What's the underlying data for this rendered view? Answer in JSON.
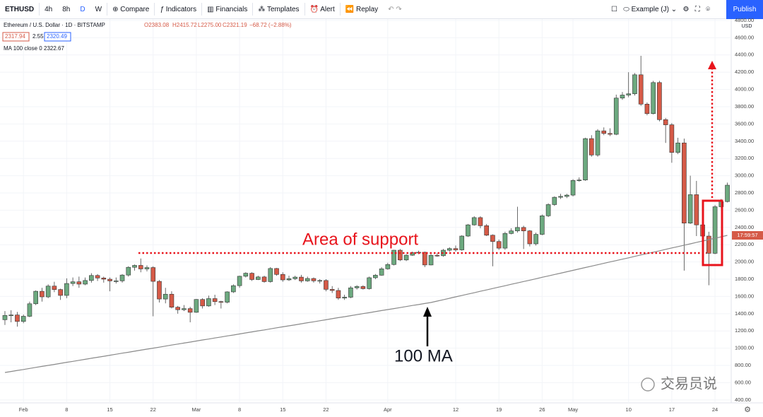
{
  "toolbar": {
    "symbol": "ETHUSD",
    "intervals": [
      "4h",
      "8h",
      "D",
      "W"
    ],
    "compare": "Compare",
    "indicators": "Indicators",
    "financials": "Financials",
    "templates": "Templates",
    "alert": "Alert",
    "replay": "Replay",
    "layout": "Example (J)",
    "publish": "Publish"
  },
  "legend": {
    "title": "Ethereum / U.S. Dollar · 1D · BITSTAMP",
    "open": "O2383.08",
    "high": "H2415.72",
    "low": "L2275.00",
    "close": "C2321.19",
    "change": "−68.72 (−2.88%)",
    "bid": "2317.94",
    "spread": "2.55",
    "ask": "2320.49",
    "ma_label": "MA 100 close 0",
    "ma_value": "2322.67"
  },
  "price_axis": {
    "currency": "USD",
    "countdown": "17:59:57"
  },
  "annotations": {
    "support": "Area of support",
    "ma": "100 MA"
  },
  "watermark": "交易员说",
  "chart_data": {
    "type": "candlestick",
    "up_color": "#6ca97f",
    "down_color": "#d55a47",
    "grid": true,
    "categories": [
      null,
      null,
      null,
      "Feb",
      null,
      null,
      null,
      null,
      null,
      null,
      "8",
      null,
      null,
      null,
      null,
      null,
      null,
      "15",
      null,
      null,
      null,
      null,
      null,
      null,
      "22",
      null,
      null,
      null,
      null,
      null,
      null,
      "Mar",
      null,
      null,
      null,
      null,
      null,
      null,
      "8",
      null,
      null,
      null,
      null,
      null,
      null,
      "15",
      null,
      null,
      null,
      null,
      null,
      null,
      "22",
      null,
      null,
      null,
      null,
      null,
      null,
      null,
      null,
      null,
      "Apr",
      null,
      null,
      null,
      null,
      null,
      null,
      null,
      null,
      null,
      null,
      "12",
      null,
      null,
      null,
      null,
      null,
      null,
      "19",
      null,
      null,
      null,
      null,
      null,
      null,
      "26",
      null,
      null,
      null,
      null,
      "May",
      null,
      null,
      null,
      null,
      null,
      null,
      null,
      null,
      "10",
      null,
      null,
      null,
      null,
      null,
      null,
      "17",
      null,
      null,
      null,
      null,
      null,
      null,
      "24",
      null,
      null
    ],
    "open": [
      1330,
      1380,
      1385,
      1310,
      1370,
      1515,
      1660,
      1595,
      1720,
      1680,
      1612,
      1750,
      1770,
      1743,
      1785,
      1843,
      1814,
      1800,
      1780,
      1781,
      1848,
      1938,
      1960,
      1919,
      1935,
      1775,
      1570,
      1626,
      1475,
      1446,
      1459,
      1416,
      1565,
      1490,
      1575,
      1540,
      1533,
      1653,
      1725,
      1834,
      1869,
      1796,
      1826,
      1772,
      1924,
      1855,
      1792,
      1806,
      1824,
      1780,
      1808,
      1781,
      1785,
      1682,
      1669,
      1581,
      1591,
      1700,
      1715,
      1690,
      1817,
      1846,
      1920,
      1970,
      2136,
      2023,
      2078,
      2107,
      2112,
      1965,
      2077,
      2072,
      2136,
      2155,
      2140,
      2300,
      2430,
      2514,
      2420,
      2310,
      2237,
      2160,
      2330,
      2360,
      2400,
      2360,
      2210,
      2320,
      2535,
      2665,
      2750,
      2760,
      2775,
      2945,
      2950,
      3430,
      3240,
      3520,
      3490,
      3480,
      3900,
      3935,
      3950,
      4170,
      3830,
      3720,
      4080,
      3650,
      3590,
      3270,
      3380,
      2450,
      2780,
      2430,
      2300,
      2100,
      2640,
      2700
    ],
    "high": [
      1430,
      1440,
      1420,
      1390,
      1540,
      1670,
      1700,
      1740,
      1770,
      1690,
      1810,
      1820,
      1830,
      1820,
      1870,
      1860,
      1830,
      1820,
      1820,
      1860,
      1950,
      1970,
      2040,
      1960,
      1950,
      1790,
      1700,
      1660,
      1490,
      1500,
      1480,
      1570,
      1580,
      1610,
      1620,
      1550,
      1660,
      1740,
      1840,
      1880,
      1880,
      1840,
      1840,
      1940,
      1930,
      1880,
      1840,
      1840,
      1850,
      1830,
      1820,
      1800,
      1800,
      1720,
      1700,
      1620,
      1720,
      1730,
      1730,
      1830,
      1860,
      1940,
      1990,
      2140,
      2150,
      2090,
      2120,
      2130,
      2120,
      2090,
      2100,
      2150,
      2170,
      2190,
      2310,
      2440,
      2530,
      2530,
      2440,
      2320,
      2260,
      2350,
      2390,
      2640,
      2420,
      2370,
      2340,
      2550,
      2680,
      2760,
      2790,
      2790,
      2960,
      2980,
      3440,
      3470,
      3540,
      3560,
      3550,
      3940,
      3970,
      4200,
      4190,
      4390,
      3850,
      4100,
      4100,
      3670,
      3610,
      3440,
      3430,
      3000,
      2940,
      2500,
      2350,
      2660,
      2730,
      2920
    ],
    "low": [
      1270,
      1300,
      1250,
      1290,
      1360,
      1500,
      1540,
      1580,
      1650,
      1560,
      1580,
      1720,
      1700,
      1730,
      1760,
      1780,
      1760,
      1660,
      1750,
      1760,
      1830,
      1900,
      1880,
      1890,
      1370,
      1530,
      1520,
      1460,
      1400,
      1430,
      1300,
      1410,
      1460,
      1480,
      1500,
      1460,
      1520,
      1640,
      1700,
      1820,
      1780,
      1790,
      1760,
      1760,
      1840,
      1770,
      1780,
      1790,
      1760,
      1770,
      1760,
      1750,
      1660,
      1640,
      1560,
      1560,
      1580,
      1680,
      1680,
      1680,
      1800,
      1840,
      1910,
      1960,
      2010,
      2010,
      2070,
      2090,
      1940,
      1960,
      2060,
      2060,
      2120,
      2120,
      2130,
      2290,
      2420,
      2390,
      2300,
      1950,
      2140,
      2140,
      2320,
      2340,
      2150,
      2180,
      2190,
      2310,
      2520,
      2650,
      2730,
      2740,
      2760,
      2930,
      2940,
      3220,
      3220,
      3470,
      3460,
      3470,
      3880,
      3910,
      3930,
      3810,
      3700,
      3710,
      3630,
      3380,
      3150,
      3250,
      1900,
      2440,
      2300,
      2200,
      1730,
      2090,
      2620,
      2690
    ],
    "close": [
      1380,
      1385,
      1310,
      1370,
      1515,
      1660,
      1595,
      1720,
      1680,
      1612,
      1750,
      1770,
      1743,
      1785,
      1843,
      1814,
      1800,
      1780,
      1781,
      1848,
      1938,
      1960,
      1919,
      1935,
      1775,
      1570,
      1626,
      1475,
      1446,
      1459,
      1416,
      1565,
      1490,
      1575,
      1540,
      1533,
      1653,
      1725,
      1834,
      1869,
      1796,
      1826,
      1772,
      1924,
      1855,
      1792,
      1806,
      1824,
      1780,
      1808,
      1781,
      1785,
      1682,
      1669,
      1581,
      1591,
      1700,
      1715,
      1690,
      1817,
      1846,
      1920,
      1970,
      2136,
      2023,
      2078,
      2107,
      2112,
      1965,
      2077,
      2072,
      2136,
      2155,
      2140,
      2300,
      2430,
      2514,
      2420,
      2310,
      2237,
      2160,
      2330,
      2360,
      2400,
      2360,
      2210,
      2320,
      2535,
      2665,
      2750,
      2760,
      2775,
      2945,
      2950,
      3430,
      3240,
      3520,
      3490,
      3480,
      3900,
      3935,
      3950,
      4170,
      3830,
      3720,
      4080,
      3650,
      3590,
      3270,
      3380,
      2450,
      2780,
      2430,
      2300,
      2100,
      2640,
      2700,
      2890
    ],
    "ma": {
      "name": "MA 100 close 0",
      "color": "#8a8a8a",
      "values": [
        718,
        730,
        742,
        753,
        765,
        777,
        789,
        800,
        812,
        824,
        836,
        847,
        859,
        871,
        883,
        895,
        906,
        918,
        930,
        942,
        953,
        965,
        977,
        989,
        1000,
        1012,
        1024,
        1036,
        1048,
        1059,
        1071,
        1083,
        1095,
        1106,
        1118,
        1130,
        1142,
        1153,
        1165,
        1177,
        1189,
        1201,
        1212,
        1224,
        1236,
        1248,
        1259,
        1271,
        1283,
        1295,
        1306,
        1318,
        1330,
        1342,
        1354,
        1365,
        1377,
        1389,
        1401,
        1412,
        1424,
        1436,
        1448,
        1459,
        1471,
        1483,
        1495,
        1506,
        1518,
        1530,
        1546,
        1562,
        1579,
        1595,
        1611,
        1627,
        1643,
        1660,
        1676,
        1692,
        1708,
        1724,
        1741,
        1757,
        1773,
        1789,
        1805,
        1822,
        1838,
        1854,
        1870,
        1886,
        1903,
        1919,
        1935,
        1951,
        1967,
        1984,
        2000,
        2016,
        2032,
        2048,
        2065,
        2081,
        2097,
        2113,
        2129,
        2146,
        2162,
        2178,
        2194,
        2210,
        2227,
        2243,
        2259,
        2275,
        2291,
        2308
      ]
    },
    "ylim": [
      366,
      4816
    ],
    "yticks": [
      {
        "value": 400,
        "label": "400.00"
      },
      {
        "value": 600,
        "label": "600.00"
      },
      {
        "value": 800,
        "label": "800.00"
      },
      {
        "value": 1000,
        "label": "1000.00"
      },
      {
        "value": 1200,
        "label": "1200.00"
      },
      {
        "value": 1400,
        "label": "1400.00"
      },
      {
        "value": 1600,
        "label": "1600.00"
      },
      {
        "value": 1800,
        "label": "1800.00"
      },
      {
        "value": 2000,
        "label": "2000.00"
      },
      {
        "value": 2200,
        "label": "2200.00"
      },
      {
        "value": 2400,
        "label": "2400.00"
      },
      {
        "value": 2600,
        "label": "2600.00"
      },
      {
        "value": 2800,
        "label": "2800.00"
      },
      {
        "value": 3000,
        "label": "3000.00"
      },
      {
        "value": 3200,
        "label": "3200.00"
      },
      {
        "value": 3400,
        "label": "3400.00"
      },
      {
        "value": 3600,
        "label": "3600.00"
      },
      {
        "value": 3800,
        "label": "3800.00"
      },
      {
        "value": 4000,
        "label": "4000.00"
      },
      {
        "value": 4200,
        "label": "4200.00"
      },
      {
        "value": 4400,
        "label": "4400.00"
      },
      {
        "value": 4600,
        "label": "4600.00"
      },
      {
        "value": 4800,
        "label": "4800.00"
      }
    ]
  }
}
